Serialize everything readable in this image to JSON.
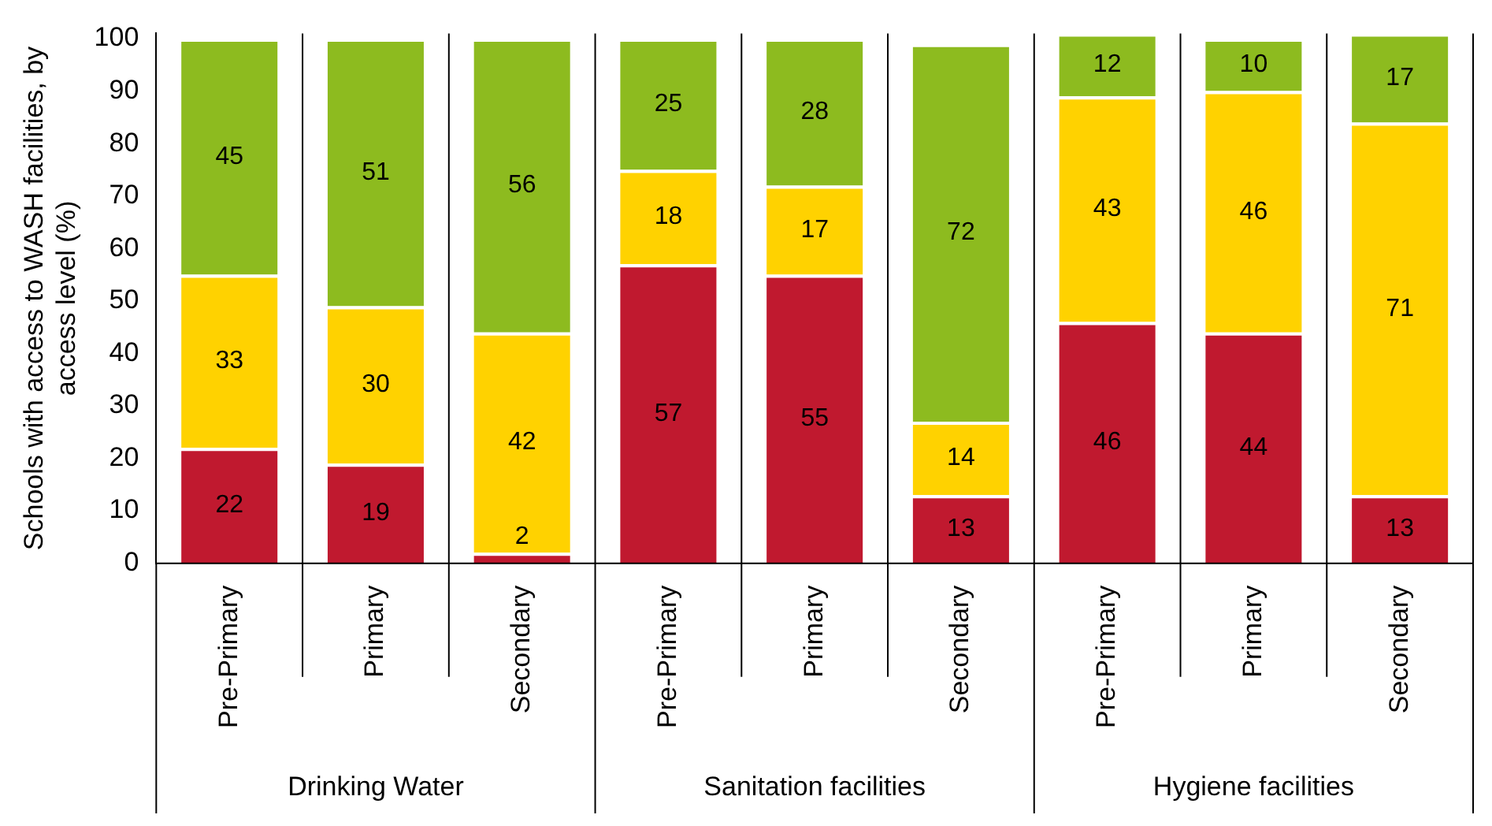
{
  "chart_data": {
    "type": "bar",
    "stacked": true,
    "ylabel": "Schools with access to WASH facilities, by access level (%)",
    "categories": [
      "Pre-Primary",
      "Primary",
      "Secondary",
      "Pre-Primary",
      "Primary",
      "Secondary",
      "Pre-Primary",
      "Primary",
      "Secondary"
    ],
    "series": [
      {
        "color": "#c0192f",
        "values": [
          22,
          19,
          2,
          57,
          55,
          13,
          46,
          44,
          13
        ]
      },
      {
        "color": "#ffd200",
        "values": [
          33,
          30,
          42,
          18,
          17,
          14,
          43,
          46,
          71
        ]
      },
      {
        "color": "#8dbb1f",
        "values": [
          45,
          51,
          56,
          25,
          28,
          72,
          12,
          10,
          17
        ]
      }
    ],
    "ylim": [
      0,
      101
    ],
    "yticks": [
      0,
      10,
      20,
      30,
      40,
      50,
      60,
      70,
      80,
      90,
      100
    ],
    "grid": false,
    "legend": false,
    "data_labels": true,
    "annotations": [
      "Drinking Water",
      "Sanitation facilities",
      "Hygiene facilities"
    ]
  }
}
